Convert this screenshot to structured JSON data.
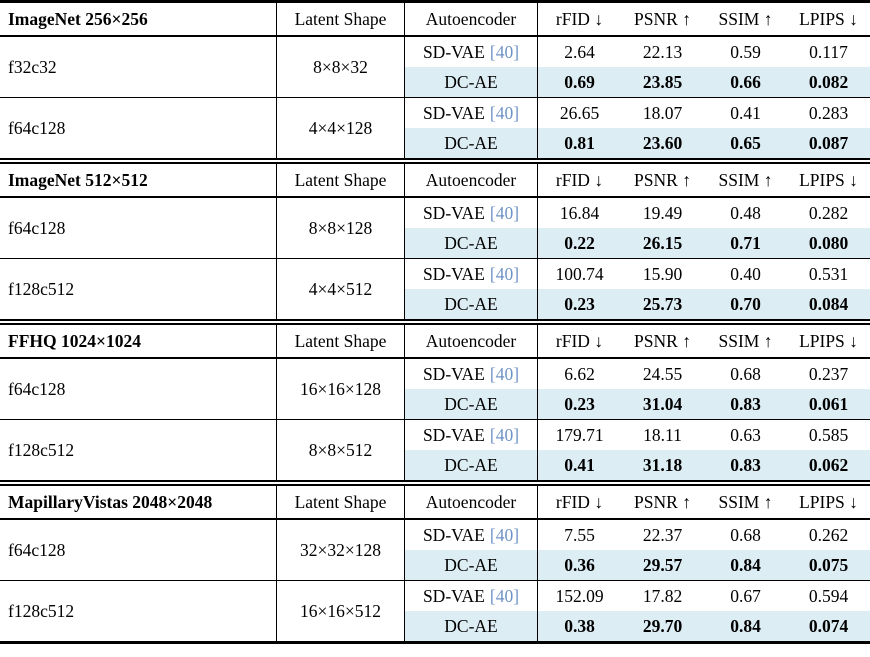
{
  "table": {
    "columns": {
      "latent_shape": "Latent Shape",
      "autoencoder": "Autoencoder",
      "metrics": [
        "rFID ↓",
        "PSNR ↑",
        "SSIM ↑",
        "LPIPS ↓"
      ]
    },
    "colors": {
      "highlight_bg": "#ddedf4",
      "citation": "#6f93c6"
    },
    "sections": [
      {
        "dataset": "ImageNet 256×256",
        "groups": [
          {
            "model": "f32c32",
            "latent_shape": "8×8×32",
            "rows": [
              {
                "name": "SD-VAE",
                "citation": "[40]",
                "highlight": false,
                "bold": false,
                "values": [
                  "2.64",
                  "22.13",
                  "0.59",
                  "0.117"
                ]
              },
              {
                "name": "DC-AE",
                "citation": "",
                "highlight": true,
                "bold": true,
                "values": [
                  "0.69",
                  "23.85",
                  "0.66",
                  "0.082"
                ]
              }
            ]
          },
          {
            "model": "f64c128",
            "latent_shape": "4×4×128",
            "rows": [
              {
                "name": "SD-VAE",
                "citation": "[40]",
                "highlight": false,
                "bold": false,
                "values": [
                  "26.65",
                  "18.07",
                  "0.41",
                  "0.283"
                ]
              },
              {
                "name": "DC-AE",
                "citation": "",
                "highlight": true,
                "bold": true,
                "values": [
                  "0.81",
                  "23.60",
                  "0.65",
                  "0.087"
                ]
              }
            ]
          }
        ]
      },
      {
        "dataset": "ImageNet 512×512",
        "groups": [
          {
            "model": "f64c128",
            "latent_shape": "8×8×128",
            "rows": [
              {
                "name": "SD-VAE",
                "citation": "[40]",
                "highlight": false,
                "bold": false,
                "values": [
                  "16.84",
                  "19.49",
                  "0.48",
                  "0.282"
                ]
              },
              {
                "name": "DC-AE",
                "citation": "",
                "highlight": true,
                "bold": true,
                "values": [
                  "0.22",
                  "26.15",
                  "0.71",
                  "0.080"
                ]
              }
            ]
          },
          {
            "model": "f128c512",
            "latent_shape": "4×4×512",
            "rows": [
              {
                "name": "SD-VAE",
                "citation": "[40]",
                "highlight": false,
                "bold": false,
                "values": [
                  "100.74",
                  "15.90",
                  "0.40",
                  "0.531"
                ]
              },
              {
                "name": "DC-AE",
                "citation": "",
                "highlight": true,
                "bold": true,
                "values": [
                  "0.23",
                  "25.73",
                  "0.70",
                  "0.084"
                ]
              }
            ]
          }
        ]
      },
      {
        "dataset": "FFHQ 1024×1024",
        "groups": [
          {
            "model": "f64c128",
            "latent_shape": "16×16×128",
            "rows": [
              {
                "name": "SD-VAE",
                "citation": "[40]",
                "highlight": false,
                "bold": false,
                "values": [
                  "6.62",
                  "24.55",
                  "0.68",
                  "0.237"
                ]
              },
              {
                "name": "DC-AE",
                "citation": "",
                "highlight": true,
                "bold": true,
                "values": [
                  "0.23",
                  "31.04",
                  "0.83",
                  "0.061"
                ]
              }
            ]
          },
          {
            "model": "f128c512",
            "latent_shape": "8×8×512",
            "rows": [
              {
                "name": "SD-VAE",
                "citation": "[40]",
                "highlight": false,
                "bold": false,
                "values": [
                  "179.71",
                  "18.11",
                  "0.63",
                  "0.585"
                ]
              },
              {
                "name": "DC-AE",
                "citation": "",
                "highlight": true,
                "bold": true,
                "values": [
                  "0.41",
                  "31.18",
                  "0.83",
                  "0.062"
                ]
              }
            ]
          }
        ]
      },
      {
        "dataset": "MapillaryVistas 2048×2048",
        "groups": [
          {
            "model": "f64c128",
            "latent_shape": "32×32×128",
            "rows": [
              {
                "name": "SD-VAE",
                "citation": "[40]",
                "highlight": false,
                "bold": false,
                "values": [
                  "7.55",
                  "22.37",
                  "0.68",
                  "0.262"
                ]
              },
              {
                "name": "DC-AE",
                "citation": "",
                "highlight": true,
                "bold": true,
                "values": [
                  "0.36",
                  "29.57",
                  "0.84",
                  "0.075"
                ]
              }
            ]
          },
          {
            "model": "f128c512",
            "latent_shape": "16×16×512",
            "rows": [
              {
                "name": "SD-VAE",
                "citation": "[40]",
                "highlight": false,
                "bold": false,
                "values": [
                  "152.09",
                  "17.82",
                  "0.67",
                  "0.594"
                ]
              },
              {
                "name": "DC-AE",
                "citation": "",
                "highlight": true,
                "bold": true,
                "values": [
                  "0.38",
                  "29.70",
                  "0.84",
                  "0.074"
                ]
              }
            ]
          }
        ]
      }
    ]
  }
}
